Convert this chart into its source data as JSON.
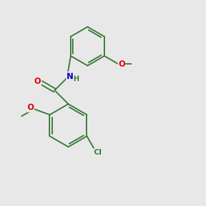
{
  "background_color": "#e8e8e8",
  "bond_color": "#3a7a3a",
  "atom_colors": {
    "O": "#e00000",
    "N": "#0000cc",
    "Cl": "#3a7a3a",
    "H": "#3a7a3a"
  },
  "figsize": [
    3.0,
    3.0
  ],
  "dpi": 100,
  "bond_lw": 1.4,
  "fontsize": 7.5
}
